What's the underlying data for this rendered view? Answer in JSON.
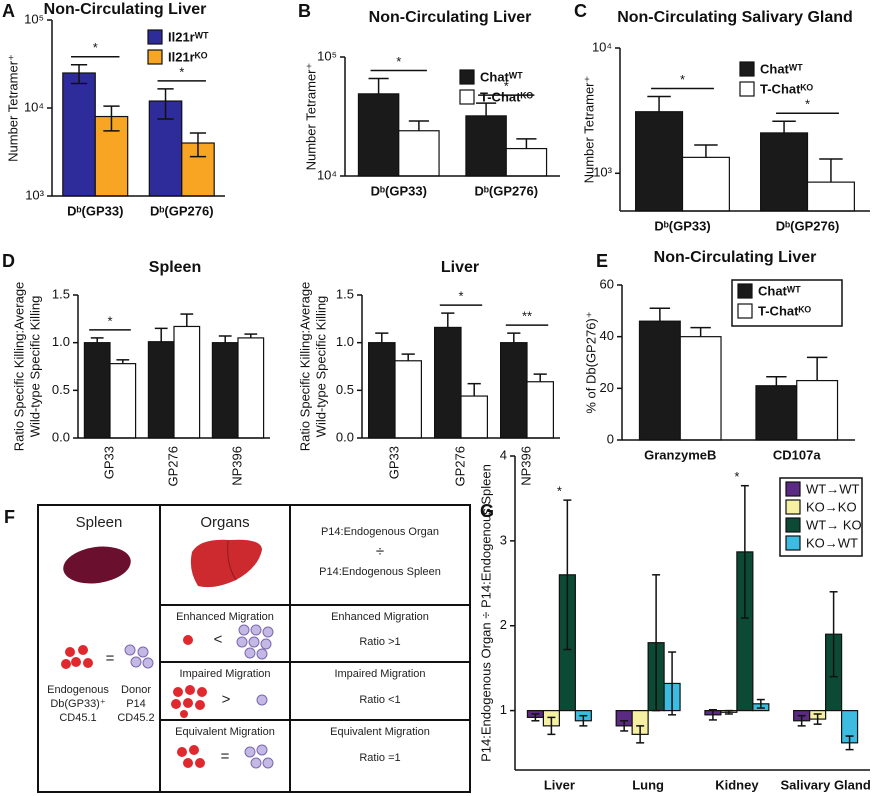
{
  "chart_data": [
    {
      "type": "bar",
      "panel": "A",
      "title": "Non-Circulating Liver",
      "ylabel": [
        "Number Tetramer⁺"
      ],
      "categories": [
        "Dᵇ(GP33)",
        "Dᵇ(GP276)"
      ],
      "series": [
        {
          "name": "Il21rᵂᵀ",
          "color": "#2e2b9a",
          "values": [
            25000,
            12000
          ],
          "errors": [
            6000,
            4500
          ]
        },
        {
          "name": "Il21rᴷᴼ",
          "color": "#f7a523",
          "values": [
            8000,
            4000
          ],
          "errors": [
            2500,
            1200
          ]
        }
      ],
      "log": true,
      "ylim": [
        1000,
        100000
      ],
      "yticks": [
        {
          "value": 1000,
          "label": "10³"
        },
        {
          "value": 10000,
          "label": "10⁴"
        },
        {
          "value": 100000,
          "label": "10⁵"
        }
      ],
      "significance": [
        "*",
        "*"
      ],
      "errorbars": "both",
      "legend": "upper right"
    },
    {
      "type": "bar",
      "panel": "B",
      "title": "Non-Circulating Liver",
      "ylabel": [
        "Number Tetramer⁺"
      ],
      "categories": [
        "Dᵇ(GP33)",
        "Dᵇ(GP276)"
      ],
      "series": [
        {
          "name": "Chatᵂᵀ",
          "color": "#1a1a1a",
          "values": [
            49000,
            32000
          ],
          "errors": [
            17000,
            9000
          ]
        },
        {
          "name": "T-Chatᴷᴼ",
          "color": "#ffffff",
          "values": [
            24000,
            17000
          ],
          "errors": [
            5000,
            3500
          ]
        }
      ],
      "log": true,
      "ylim": [
        10000,
        100000
      ],
      "yticks": [
        {
          "value": 10000,
          "label": "10⁴"
        },
        {
          "value": 100000,
          "label": "10⁵"
        }
      ],
      "significance": [
        "*",
        "*"
      ],
      "errorbars": "up",
      "legend": "upper right"
    },
    {
      "type": "bar",
      "panel": "C",
      "title": "Non-Circulating Salivary Gland",
      "ylabel": [
        "Number Tetramer⁺"
      ],
      "categories": [
        "Dᵇ(GP33)",
        "Dᵇ(GP276)"
      ],
      "series": [
        {
          "name": "Chatᵂᵀ",
          "color": "#1a1a1a",
          "values": [
            3100,
            2100
          ],
          "errors": [
            1000,
            500
          ]
        },
        {
          "name": "T-Chatᴷᴼ",
          "color": "#ffffff",
          "values": [
            1340,
            850
          ],
          "errors": [
            340,
            450
          ]
        }
      ],
      "log": true,
      "ylim": [
        500,
        10000
      ],
      "yticks": [
        {
          "value": 1000,
          "label": "10³"
        },
        {
          "value": 10000,
          "label": "10⁴"
        }
      ],
      "significance": [
        "*",
        "*"
      ],
      "errorbars": "up",
      "legend": "upper right"
    },
    {
      "type": "bar",
      "panel": "D",
      "title": "Spleen",
      "ylabel": [
        "Ratio Specific Killing:Average",
        "Wild-type Specific Killing"
      ],
      "categories": [
        "GP33",
        "GP276",
        "NP396"
      ],
      "series": [
        {
          "color": "#1a1a1a",
          "values": [
            1.0,
            1.01,
            1.0
          ],
          "errors": [
            0.05,
            0.14,
            0.07
          ]
        },
        {
          "color": "#ffffff",
          "values": [
            0.78,
            1.17,
            1.05
          ],
          "errors": [
            0.04,
            0.13,
            0.04
          ]
        }
      ],
      "ylim": [
        0,
        1.5
      ],
      "yticks": [
        {
          "value": 0,
          "label": "0.0"
        },
        {
          "value": 0.5,
          "label": "0.5"
        },
        {
          "value": 1,
          "label": "1.0"
        },
        {
          "value": 1.5,
          "label": "1.5"
        }
      ],
      "significance": [
        "*",
        null,
        null
      ],
      "errorbars": "up",
      "xlabel_rotation": 90
    },
    {
      "type": "bar",
      "title": "Liver",
      "ylabel": [
        "Ratio Specific Killing:Average",
        "Wild-type Specific Killing"
      ],
      "categories": [
        "GP33",
        "GP276",
        "NP396"
      ],
      "series": [
        {
          "color": "#1a1a1a",
          "values": [
            1.0,
            1.16,
            1.0
          ],
          "errors": [
            0.1,
            0.15,
            0.1
          ]
        },
        {
          "color": "#ffffff",
          "values": [
            0.81,
            0.44,
            0.59
          ],
          "errors": [
            0.07,
            0.13,
            0.08
          ]
        }
      ],
      "ylim": [
        0,
        1.5
      ],
      "yticks": [
        {
          "value": 0,
          "label": "0.0"
        },
        {
          "value": 0.5,
          "label": "0.5"
        },
        {
          "value": 1,
          "label": "1.0"
        },
        {
          "value": 1.5,
          "label": "1.5"
        }
      ],
      "significance": [
        null,
        "*",
        "**"
      ],
      "errorbars": "up",
      "xlabel_rotation": 90
    },
    {
      "type": "bar",
      "panel": "E",
      "title": "Non-Circulating Liver",
      "ylabel": [
        "% of Db(GP276)⁺"
      ],
      "categories": [
        "GranzymeB",
        "CD107a"
      ],
      "series": [
        {
          "name": "Chatᵂᵀ",
          "color": "#1a1a1a",
          "values": [
            46,
            21
          ],
          "errors": [
            5,
            3.5
          ]
        },
        {
          "name": "T-Chatᴷᴼ",
          "color": "#ffffff",
          "values": [
            40,
            23
          ],
          "errors": [
            3.5,
            9
          ]
        }
      ],
      "ylim": [
        0,
        60
      ],
      "yticks": [
        0,
        20,
        40,
        60
      ],
      "errorbars": "up",
      "legend": "upper right",
      "legend_frame": true
    },
    {
      "type": "bar",
      "panel": "G",
      "ylabel": [
        "P14:Endogenous Organ ÷ P14:Endogenous Spleen"
      ],
      "categories": [
        "Liver",
        "Lung",
        "Kidney",
        "Salivary Gland"
      ],
      "series": [
        {
          "name": "WT→WT",
          "color": "#5b2a83",
          "values": [
            0.92,
            0.82,
            0.95,
            0.88
          ],
          "errors": [
            0.04,
            0.06,
            0.06,
            0.06
          ]
        },
        {
          "name": "KO→KO",
          "color": "#f6f0a3",
          "values": [
            0.82,
            0.72,
            0.98,
            0.9
          ],
          "errors": [
            0.1,
            0.1,
            0.02,
            0.06
          ]
        },
        {
          "name": "WT→ KO",
          "color": "#0c4a35",
          "values": [
            2.6,
            1.8,
            2.87,
            1.9
          ],
          "errors": [
            0.88,
            0.8,
            0.78,
            0.5
          ]
        },
        {
          "name": "KO→WT",
          "color": "#3bbce0",
          "values": [
            0.88,
            1.32,
            1.08,
            0.62
          ],
          "errors": [
            0.06,
            0.37,
            0.05,
            0.08
          ]
        }
      ],
      "ylim": [
        0.3,
        4
      ],
      "yticks": [
        1,
        2,
        3,
        4
      ],
      "bar_base": 1,
      "significance": [
        "*",
        null,
        "*",
        null
      ],
      "errorbars": "both",
      "legend": "upper right",
      "legend_frame": true
    }
  ],
  "diagram": {
    "panel": "F",
    "spleen": "Spleen",
    "organs": "Organs",
    "formula": {
      "top": "P14:Endogenous Organ",
      "op": "÷",
      "bottom": "P14:Endogenous Spleen"
    },
    "endogenous": [
      "Endogenous",
      "Db(GP33)⁺",
      "CD45.1"
    ],
    "equals": "=",
    "donor": [
      "Donor",
      "P14",
      "CD45.2"
    ],
    "rows": [
      {
        "label": "Enhanced Migration",
        "symbol": "<",
        "result": "Enhanced Migration",
        "ratio": "Ratio >1"
      },
      {
        "label": "Impaired Migration",
        "symbol": ">",
        "result": "Impaired Migration",
        "ratio": "Ratio <1"
      },
      {
        "label": "Equivalent Migration",
        "symbol": "=",
        "result": "Equivalent Migration",
        "ratio": "Ratio =1"
      }
    ]
  }
}
